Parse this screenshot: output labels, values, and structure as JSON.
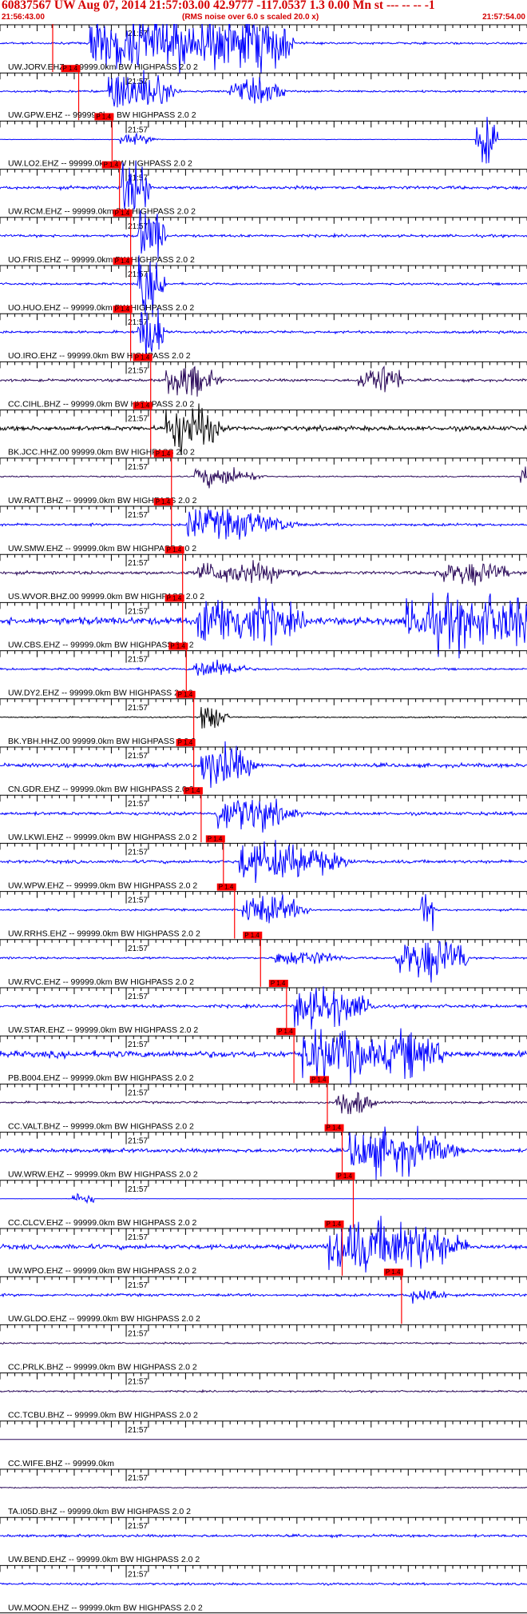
{
  "header": {
    "title": "60837567 UW Aug 07, 2014 21:57:03.00   42.9777 -117.0537  1.3 0.00 Mn st --- -- --  -1",
    "start_time": "21:56:43.00",
    "noise_note": "(RMS noise over 6.0 s scaled 20.0 x)",
    "end_time": "21:57:54.00"
  },
  "chart_data": {
    "type": "seismogram",
    "title": "60837567 UW Aug 07, 2014 21:57:03.00   42.9777 -117.0537  1.3 0.00 Mn st --- -- --  -1",
    "x_start": "21:56:43.00",
    "x_end": "21:57:54.00",
    "x_tick_label": "21:57",
    "pick_label": "P 1.4",
    "colors": {
      "blue": "#0000ff",
      "purple": "#2b0a5a",
      "black": "#000000",
      "pick": "#ff0000"
    },
    "traces": [
      {
        "label": "UW.JORV.EHZ -- 99999.0km BW  HIGHPASS  2.0  2",
        "color": "blue",
        "pick_s": 0.0,
        "burst": [
          5,
          14,
          6.0
        ],
        "burst2": null,
        "noise": 0.1
      },
      {
        "label": "UW.GPW.EHZ -- 99999.0km BW  HIGHPASS  2.0  2",
        "color": "blue",
        "pick_s": 3.5,
        "burst": [
          4,
          5,
          0.9
        ],
        "burst2": [
          20,
          8,
          0.5
        ],
        "noise": 0.1
      },
      {
        "label": "UW.LO2.EHZ -- 99999.0km BW  HIGHPASS  2.0  2",
        "color": "blue",
        "pick_s": 8.0,
        "burst": [
          1,
          3,
          0.2
        ],
        "burst2": [
          49,
          3,
          1.2
        ],
        "noise": 0.02
      },
      {
        "label": "UW.RCM.EHZ -- 99999.0km BW  HIGHPASS  2.0  2",
        "color": "blue",
        "pick_s": 9.0,
        "burst": [
          0.3,
          2,
          3.0
        ],
        "burst2": null,
        "noise": 0.15
      },
      {
        "label": "UO.FRIS.EHZ -- 99999.0km BW  HIGHPASS  2.0  2",
        "color": "blue",
        "pick_s": 10.5,
        "burst": [
          1,
          2,
          2.0
        ],
        "burst2": null,
        "noise": 0.12
      },
      {
        "label": "UO.HUO.EHZ -- 99999.0km BW  HIGHPASS  2.0  2",
        "color": "blue",
        "pick_s": 10.5,
        "burst": [
          1,
          2,
          2.0
        ],
        "burst2": null,
        "noise": 0.1
      },
      {
        "label": "UO.IRO.EHZ -- 99999.0km BW  HIGHPASS  2.0  2",
        "color": "blue",
        "pick_s": 10.5,
        "burst": [
          1,
          2,
          2.0
        ],
        "burst2": null,
        "noise": 0.12
      },
      {
        "label": "CC.CIHL.BHZ -- 99999.0km BW  HIGHPASS  2.0  2",
        "color": "purple",
        "pick_s": 13.2,
        "burst": [
          2,
          4,
          0.7
        ],
        "burst2": [
          28,
          6,
          0.7
        ],
        "noise": 0.12
      },
      {
        "label": "BK.JCC.HHZ.00 99999.0km BW  HIGHPASS  2.0  2",
        "color": "black",
        "pick_s": 13.2,
        "burst": [
          2,
          4,
          1.2
        ],
        "burst2": null,
        "noise": 0.22
      },
      {
        "label": "UW.RATT.BHZ -- 99999.0km BW  HIGHPASS  2.0  2",
        "color": "purple",
        "pick_s": 16.0,
        "burst": [
          3,
          5,
          0.4
        ],
        "burst2": [
          47,
          6,
          0.8
        ],
        "noise": 0.06
      },
      {
        "label": "UW.SMW.EHZ -- 99999.0km BW  HIGHPASS  2.0  2",
        "color": "blue",
        "pick_s": 16.0,
        "burst": [
          2,
          8,
          0.6
        ],
        "burst2": null,
        "noise": 0.12
      },
      {
        "label": "US.WVOR.BHZ.00 99999.0km BW  HIGHPASS  2.0  2",
        "color": "purple",
        "pick_s": 17.5,
        "burst": [
          2,
          8,
          0.4
        ],
        "burst2": [
          34,
          10,
          0.5
        ],
        "noise": 0.15
      },
      {
        "label": "UW.CBS.EHZ -- 99999.0km BW  HIGHPASS  2.0  2",
        "color": "blue",
        "pick_s": 17.5,
        "burst": [
          2,
          8,
          1.0
        ],
        "burst2": [
          30,
          24,
          1.5
        ],
        "noise": 0.35
      },
      {
        "label": "UW.DY2.EHZ -- 99999.0km BW  HIGHPASS  2.0  2",
        "color": "blue",
        "pick_s": 18.0,
        "burst": [
          1,
          4,
          0.4
        ],
        "burst2": null,
        "noise": 0.1
      },
      {
        "label": "BK.YBH.HHZ.00 99999.0km BW  HIGHPASS  2.0  2",
        "color": "black",
        "pick_s": 19.0,
        "burst": [
          1,
          2,
          0.6
        ],
        "burst2": null,
        "noise": 0.06
      },
      {
        "label": "CN.GDR.EHZ -- 99999.0km BW  HIGHPASS  2.0  2",
        "color": "blue",
        "pick_s": 19.0,
        "burst": [
          1,
          4,
          0.9
        ],
        "burst2": null,
        "noise": 0.18
      },
      {
        "label": "UW.LKWI.EHZ -- 99999.0km BW  HIGHPASS  2.0  2",
        "color": "blue",
        "pick_s": 20.0,
        "burst": [
          2,
          6,
          0.7
        ],
        "burst2": null,
        "noise": 0.15
      },
      {
        "label": "UW.WPW.EHZ -- 99999.0km BW  HIGHPASS  2.0  2",
        "color": "blue",
        "pick_s": 23.0,
        "burst": [
          2,
          8,
          0.8
        ],
        "burst2": null,
        "noise": 0.15
      },
      {
        "label": "UW.RRHS.EHZ -- 99999.0km BW  HIGHPASS  2.0  2",
        "color": "blue",
        "pick_s": 24.5,
        "burst": [
          1,
          5,
          0.6
        ],
        "burst2": [
          25,
          2,
          1.0
        ],
        "noise": 0.1
      },
      {
        "label": "UW.RVC.EHZ -- 99999.0km BW  HIGHPASS  2.0  2",
        "color": "blue",
        "pick_s": 28.0,
        "burst": [
          2,
          5,
          0.3
        ],
        "burst2": [
          18,
          10,
          1.0
        ],
        "noise": 0.1
      },
      {
        "label": "UW.STAR.EHZ -- 99999.0km BW  HIGHPASS  2.0  2",
        "color": "blue",
        "pick_s": 31.5,
        "burst": [
          1,
          6,
          0.8
        ],
        "burst2": null,
        "noise": 0.15
      },
      {
        "label": "PB.B004.EHZ -- 99999.0km BW  HIGHPASS  2.0  2",
        "color": "blue",
        "pick_s": 32.5,
        "burst": [
          1,
          6,
          1.3
        ],
        "burst2": [
          12,
          8,
          1.0
        ],
        "noise": 0.3
      },
      {
        "label": "CC.VALT.BHZ -- 99999.0km BW  HIGHPASS  2.0  2",
        "color": "purple",
        "pick_s": 37.0,
        "burst": [
          1,
          3,
          0.6
        ],
        "burst2": null,
        "noise": 0.1
      },
      {
        "label": "UW.WRW.EHZ -- 99999.0km BW  HIGHPASS  2.0  2",
        "color": "blue",
        "pick_s": 39.0,
        "burst": [
          1,
          8,
          0.9
        ],
        "burst2": null,
        "noise": 0.18
      },
      {
        "label": "CC.CLCV.EHZ -- 99999.0km BW  HIGHPASS  2.0  2",
        "color": "blue",
        "pick_s": 40.5,
        "burst": [
          0,
          1,
          0.0
        ],
        "burst2": [
          -38,
          3,
          0.3
        ],
        "noise": 0.01
      },
      {
        "label": "UW.WPO.EHZ -- 99999.0km BW  HIGHPASS  2.0  2",
        "color": "blue",
        "pick_s": 39.0,
        "burst": [
          -2,
          10,
          1.5
        ],
        "burst2": null,
        "noise": 0.22
      },
      {
        "label": "UW.GLDO.EHZ -- 99999.0km BW  HIGHPASS  2.0  2",
        "color": "blue",
        "pick_s": 47.0,
        "burst": [
          1,
          3,
          0.3
        ],
        "burst2": null,
        "noise": 0.12
      },
      {
        "label": "CC.PRLK.BHZ -- 99999.0km BW  HIGHPASS  2.0  2",
        "color": "purple",
        "pick_s": null,
        "burst": null,
        "burst2": null,
        "noise": 0.08
      },
      {
        "label": "CC.TCBU.BHZ -- 99999.0km BW  HIGHPASS  2.0  2",
        "color": "purple",
        "pick_s": null,
        "burst": null,
        "burst2": null,
        "noise": 0.08
      },
      {
        "label": "CC.WIFE.BHZ -- 99999.0km",
        "color": "purple",
        "pick_s": null,
        "burst": null,
        "burst2": null,
        "noise": 0.0
      },
      {
        "label": "TA.I05D.BHZ -- 99999.0km BW  HIGHPASS  2.0  2",
        "color": "purple",
        "pick_s": null,
        "burst": null,
        "burst2": null,
        "noise": 0.05
      },
      {
        "label": "UW.BEND.EHZ -- 99999.0km BW  HIGHPASS  2.0  2",
        "color": "blue",
        "pick_s": null,
        "burst": null,
        "burst2": null,
        "noise": 0.12
      },
      {
        "label": "UW.MOON.EHZ -- 99999.0km BW  HIGHPASS  2.0  2",
        "color": "blue",
        "pick_s": null,
        "burst": null,
        "burst2": null,
        "noise": 0.1
      }
    ]
  }
}
